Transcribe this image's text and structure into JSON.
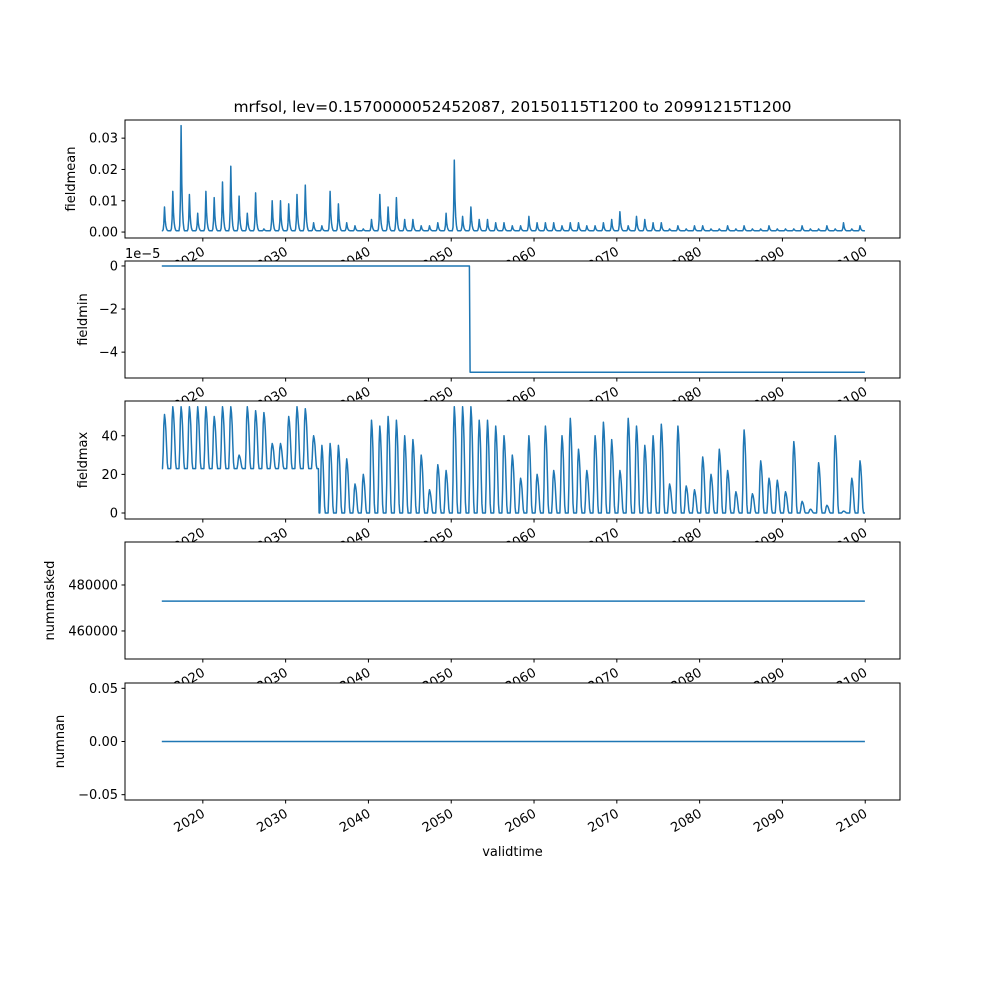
{
  "chart_data": {
    "type": "line",
    "title": "mrfsol, lev=0.1570000052452087, 20150115T1200 to 20991215T1200",
    "xlabel": "validtime",
    "xlim": [
      2010.6,
      2104.2
    ],
    "xticks": [
      2020,
      2030,
      2040,
      2050,
      2060,
      2070,
      2080,
      2090,
      2100
    ],
    "xtick_labels": [
      "2020",
      "2030",
      "2040",
      "2050",
      "2060",
      "2070",
      "2080",
      "2090",
      "2100"
    ],
    "x_start": 2015.04,
    "x_end": 2099.96,
    "color": "#1f77b4",
    "panels": [
      {
        "ylabel": "fieldmean",
        "ylim": [
          -0.0019,
          0.0358
        ],
        "yticks": [
          0,
          0.01,
          0.02,
          0.03
        ],
        "ytick_labels": [
          "0.00",
          "0.01",
          "0.02",
          "0.03"
        ],
        "series": {
          "kind": "seasonal",
          "note_years": "annual peak values 2015-2099",
          "baseline": 0.0004,
          "annual_peaks": [
            0.008,
            0.013,
            0.034,
            0.012,
            0.006,
            0.013,
            0.011,
            0.016,
            0.021,
            0.0115,
            0.006,
            0.0125,
            0.001,
            0.01,
            0.01,
            0.009,
            0.012,
            0.015,
            0.003,
            0.002,
            0.013,
            0.009,
            0.003,
            0.002,
            0.001,
            0.004,
            0.012,
            0.008,
            0.011,
            0.004,
            0.004,
            0.002,
            0.002,
            0.003,
            0.006,
            0.023,
            0.005,
            0.008,
            0.004,
            0.004,
            0.003,
            0.003,
            0.002,
            0.002,
            0.005,
            0.003,
            0.003,
            0.003,
            0.002,
            0.003,
            0.003,
            0.002,
            0.002,
            0.003,
            0.004,
            0.0065,
            0.002,
            0.005,
            0.004,
            0.003,
            0.003,
            0.001,
            0.002,
            0.001,
            0.002,
            0.002,
            0.001,
            0.001,
            0.002,
            0.001,
            0.002,
            0.001,
            0.001,
            0.002,
            0.001,
            0.001,
            0.001,
            0.002,
            0.001,
            0.001,
            0.002,
            0.001,
            0.003,
            0.001,
            0.002
          ],
          "seasonal_shape": [
            0,
            0,
            0.05,
            0.3,
            1,
            0.45,
            0.2,
            0.08,
            0.02,
            0,
            0,
            0
          ]
        }
      },
      {
        "ylabel": "fieldmin",
        "offset_text": "1e−5",
        "ylim": [
          -5.2,
          0.23
        ],
        "yticks": [
          0,
          -2,
          -4
        ],
        "ytick_labels": [
          "0",
          "−2",
          "−4"
        ],
        "series": {
          "kind": "step",
          "before_value": 0,
          "after_value": -4.93,
          "step_at": 2052.2
        }
      },
      {
        "ylabel": "fieldmax",
        "ylim": [
          -3.1,
          58
        ],
        "yticks": [
          0,
          20,
          40
        ],
        "ytick_labels": [
          "0",
          "20",
          "40"
        ],
        "series": {
          "kind": "seasonal",
          "baseline_before": 23,
          "baseline_after": 0,
          "baseline_change_year": 2034,
          "annual_peaks": [
            51,
            55,
            55,
            55,
            55,
            55,
            50,
            55,
            55,
            30,
            55,
            53,
            52,
            36,
            36,
            50,
            55,
            54,
            40,
            35,
            36,
            35,
            28,
            15,
            20,
            48,
            45,
            50,
            48,
            40,
            38,
            30,
            12,
            25,
            22,
            55,
            55,
            55,
            48,
            48,
            45,
            40,
            30,
            18,
            40,
            20,
            45,
            22,
            40,
            49,
            33,
            22,
            40,
            47,
            38,
            22,
            49,
            45,
            35,
            40,
            46,
            15,
            45,
            14,
            12,
            29,
            20,
            33,
            22,
            11,
            43,
            10,
            27,
            18,
            17,
            11,
            37,
            6,
            2,
            26,
            4,
            40,
            1,
            18,
            27
          ],
          "seasonal_shape": [
            0,
            0,
            0.3,
            0.8,
            1,
            0.9,
            0.7,
            0.4,
            0.1,
            0,
            0,
            0
          ]
        }
      },
      {
        "ylabel": "nummasked",
        "ylim": [
          447800,
          498700
        ],
        "yticks": [
          460000,
          480000
        ],
        "ytick_labels": [
          "460000",
          "480000"
        ],
        "series": {
          "kind": "constant",
          "value": 473000
        }
      },
      {
        "ylabel": "numnan",
        "ylim": [
          -0.055,
          0.055
        ],
        "yticks": [
          -0.05,
          0,
          0.05
        ],
        "ytick_labels": [
          "−0.05",
          "0.00",
          "0.05"
        ],
        "series": {
          "kind": "constant",
          "value": 0
        }
      }
    ]
  }
}
